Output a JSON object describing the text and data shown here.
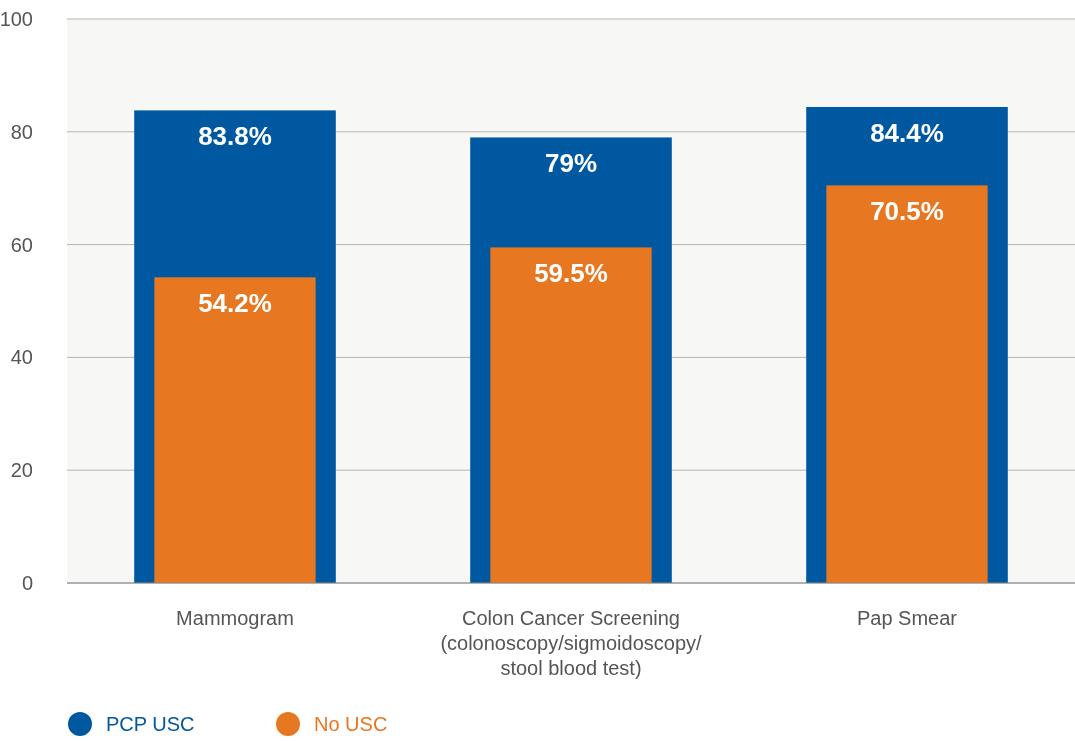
{
  "chart_data": {
    "type": "bar",
    "categories": [
      "Mammogram",
      "Colon Cancer Screening\n(colonoscopy/sigmoidoscopy/\nstool blood test)",
      "Pap Smear"
    ],
    "series": [
      {
        "name": "PCP USC",
        "color": "#0059a0",
        "values": [
          83.8,
          79,
          84.4
        ],
        "value_labels": [
          "83.8%",
          "79%",
          "84.4%"
        ]
      },
      {
        "name": "No USC",
        "color": "#e87722",
        "values": [
          54.2,
          59.5,
          70.5
        ],
        "value_labels": [
          "54.2%",
          "59.5%",
          "70.5%"
        ]
      }
    ],
    "ylim": [
      0,
      100
    ],
    "yticks": [
      0,
      20,
      40,
      60,
      80,
      100
    ],
    "grid": "y",
    "legend": "bottom left"
  }
}
